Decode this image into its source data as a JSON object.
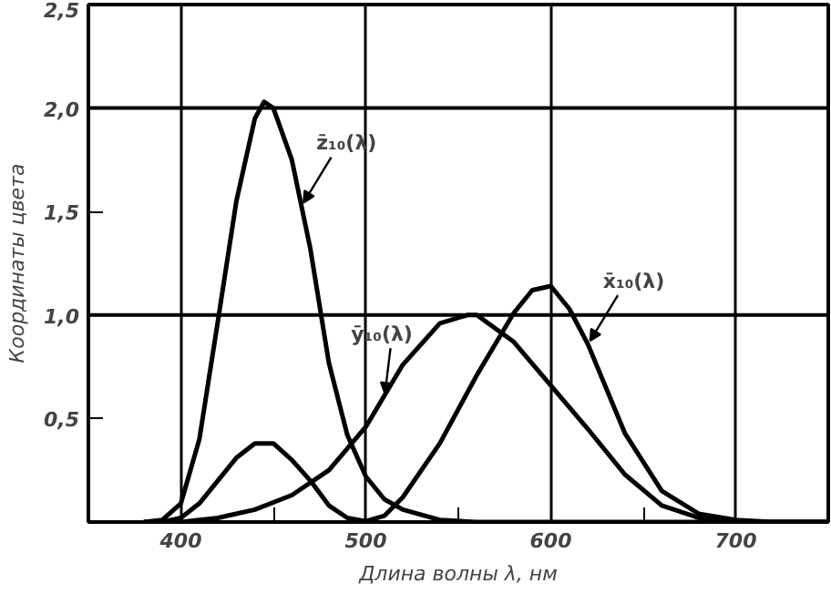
{
  "chart_data": {
    "type": "line",
    "xlabel": "Длина волны λ, нм",
    "ylabel": "Координаты цвета",
    "xlim": [
      350,
      750
    ],
    "ylim": [
      0,
      2.5
    ],
    "xticks": [
      400,
      {
        "value": 450,
        "label": null
      },
      500,
      {
        "value": 550,
        "label": null
      },
      600,
      {
        "value": 650,
        "label": null
      },
      700
    ],
    "yticks": [
      {
        "value": 0.5,
        "label": "0,5"
      },
      {
        "value": 1.0,
        "label": "1,0"
      },
      {
        "value": 1.5,
        "label": "1,5"
      },
      {
        "value": 2.0,
        "label": "2,0"
      },
      {
        "value": 2.5,
        "label": "2,5"
      }
    ],
    "grid": "x",
    "marker": "none",
    "line_style": "solid",
    "ref_lines": [
      {
        "axis": "y",
        "value": 1.0,
        "color": "#000000"
      },
      {
        "axis": "y",
        "value": 2.0,
        "color": "#000000"
      }
    ],
    "series": [
      {
        "name": "z̄₁₀(λ)",
        "color": "#000000",
        "x": [
          380,
          390,
          400,
          410,
          420,
          430,
          440,
          445,
          450,
          460,
          470,
          480,
          490,
          500,
          510,
          520,
          540,
          560,
          600,
          650,
          700,
          750
        ],
        "values": [
          0.0,
          0.01,
          0.09,
          0.4,
          0.97,
          1.55,
          1.95,
          2.03,
          2.0,
          1.75,
          1.32,
          0.77,
          0.42,
          0.22,
          0.11,
          0.06,
          0.01,
          0.0,
          0.0,
          0.0,
          0.0,
          0.0
        ]
      },
      {
        "name": "ȳ₁₀(λ)",
        "color": "#000000",
        "x": [
          380,
          400,
          420,
          440,
          460,
          480,
          500,
          520,
          540,
          555,
          560,
          580,
          600,
          620,
          640,
          660,
          680,
          700,
          720,
          750
        ],
        "values": [
          0.0,
          0.0,
          0.02,
          0.06,
          0.13,
          0.25,
          0.46,
          0.76,
          0.96,
          1.0,
          1.0,
          0.87,
          0.66,
          0.45,
          0.23,
          0.08,
          0.02,
          0.0,
          0.0,
          0.0
        ]
      },
      {
        "name": "x̄₁₀(λ)",
        "color": "#000000",
        "x": [
          380,
          390,
          400,
          410,
          420,
          430,
          440,
          450,
          460,
          470,
          480,
          490,
          500,
          510,
          520,
          540,
          560,
          580,
          590,
          600,
          610,
          620,
          640,
          660,
          680,
          700,
          720,
          750
        ],
        "values": [
          0.0,
          0.0,
          0.02,
          0.09,
          0.2,
          0.31,
          0.38,
          0.38,
          0.3,
          0.2,
          0.08,
          0.02,
          0.004,
          0.03,
          0.12,
          0.38,
          0.71,
          1.01,
          1.12,
          1.14,
          1.03,
          0.86,
          0.43,
          0.15,
          0.04,
          0.01,
          0.0,
          0.0
        ]
      }
    ]
  }
}
